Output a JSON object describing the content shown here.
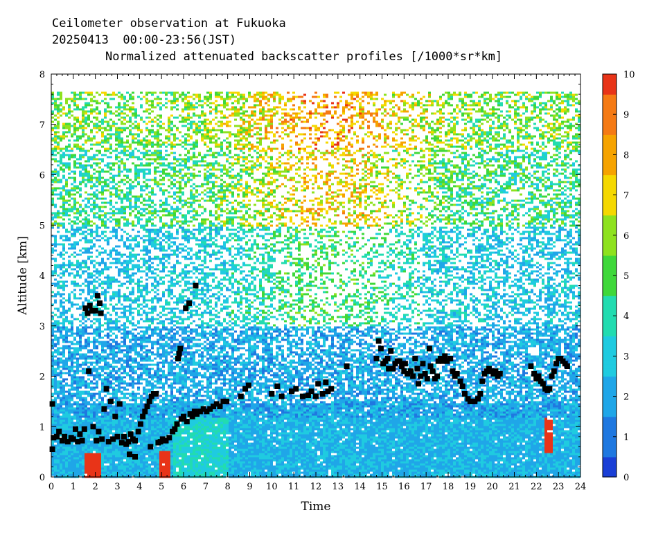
{
  "header": {
    "line1": "Ceilometer observation at Fukuoka",
    "line2": "20250413  00:00-23:56(JST)",
    "line3": "Normalized attenuated backscatter profiles [/1000*sr*km]"
  },
  "chart_data": {
    "type": "heatmap",
    "xlabel": "Time",
    "ylabel": "Altitude [km]",
    "xlim": [
      0,
      24
    ],
    "ylim": [
      0,
      8
    ],
    "xticks": [
      "0",
      "1",
      "2",
      "3",
      "4",
      "5",
      "6",
      "7",
      "8",
      "9",
      "10",
      "11",
      "12",
      "13",
      "14",
      "15",
      "16",
      "17",
      "18",
      "19",
      "20",
      "21",
      "22",
      "23",
      "24"
    ],
    "yticks": [
      "0",
      "1",
      "2",
      "3",
      "4",
      "5",
      "6",
      "7",
      "8"
    ],
    "data_top_km": 7.65,
    "colorbar": {
      "range": [
        0,
        10
      ],
      "ticks": [
        "0",
        "1",
        "2",
        "3",
        "4",
        "5",
        "6",
        "7",
        "8",
        "9",
        "10"
      ],
      "colors": [
        "#1a3fd6",
        "#1f78e0",
        "#1fa6e8",
        "#1fcbe0",
        "#22dcb0",
        "#3fd83a",
        "#8ee21e",
        "#f5d800",
        "#f6a300",
        "#f57a14",
        "#e83418"
      ]
    },
    "cloud_base_points": [
      [
        0.05,
        1.45
      ],
      [
        0.05,
        0.55
      ],
      [
        0.1,
        0.78
      ],
      [
        0.25,
        0.8
      ],
      [
        0.35,
        0.9
      ],
      [
        0.5,
        0.72
      ],
      [
        0.6,
        0.8
      ],
      [
        0.75,
        0.7
      ],
      [
        0.9,
        0.78
      ],
      [
        1.0,
        0.75
      ],
      [
        1.1,
        0.95
      ],
      [
        1.2,
        0.7
      ],
      [
        1.3,
        0.85
      ],
      [
        1.4,
        0.72
      ],
      [
        1.5,
        0.95
      ],
      [
        1.55,
        3.35
      ],
      [
        1.65,
        3.25
      ],
      [
        1.7,
        2.1
      ],
      [
        1.75,
        3.4
      ],
      [
        1.85,
        3.3
      ],
      [
        1.9,
        1.0
      ],
      [
        2.0,
        3.3
      ],
      [
        2.05,
        0.72
      ],
      [
        2.1,
        3.6
      ],
      [
        2.15,
        0.9
      ],
      [
        2.2,
        3.45
      ],
      [
        2.25,
        3.25
      ],
      [
        2.3,
        0.75
      ],
      [
        2.4,
        1.35
      ],
      [
        2.5,
        1.75
      ],
      [
        2.6,
        0.7
      ],
      [
        2.7,
        1.5
      ],
      [
        2.8,
        0.75
      ],
      [
        2.9,
        1.2
      ],
      [
        3.0,
        0.8
      ],
      [
        3.1,
        1.45
      ],
      [
        3.2,
        0.68
      ],
      [
        3.3,
        0.8
      ],
      [
        3.4,
        0.65
      ],
      [
        3.5,
        0.7
      ],
      [
        3.6,
        0.85
      ],
      [
        3.7,
        0.75
      ],
      [
        3.8,
        0.72
      ],
      [
        3.55,
        0.45
      ],
      [
        3.8,
        0.4
      ],
      [
        3.95,
        0.9
      ],
      [
        4.05,
        1.05
      ],
      [
        4.15,
        1.2
      ],
      [
        4.25,
        1.3
      ],
      [
        4.35,
        1.4
      ],
      [
        4.45,
        1.5
      ],
      [
        4.55,
        1.6
      ],
      [
        4.65,
        1.65
      ],
      [
        4.5,
        0.6
      ],
      [
        4.75,
        1.65
      ],
      [
        4.85,
        0.68
      ],
      [
        4.95,
        0.7
      ],
      [
        5.05,
        0.75
      ],
      [
        5.2,
        0.72
      ],
      [
        5.35,
        0.78
      ],
      [
        5.5,
        0.9
      ],
      [
        5.6,
        0.95
      ],
      [
        5.7,
        1.05
      ],
      [
        5.75,
        2.35
      ],
      [
        5.8,
        2.45
      ],
      [
        5.85,
        2.55
      ],
      [
        5.9,
        1.15
      ],
      [
        6.0,
        1.2
      ],
      [
        6.1,
        3.35
      ],
      [
        6.15,
        1.1
      ],
      [
        6.25,
        3.45
      ],
      [
        6.3,
        1.25
      ],
      [
        6.4,
        1.2
      ],
      [
        6.5,
        1.3
      ],
      [
        6.55,
        3.8
      ],
      [
        6.6,
        1.25
      ],
      [
        6.75,
        1.3
      ],
      [
        6.9,
        1.35
      ],
      [
        7.05,
        1.3
      ],
      [
        7.2,
        1.35
      ],
      [
        7.35,
        1.4
      ],
      [
        7.5,
        1.45
      ],
      [
        7.65,
        1.4
      ],
      [
        7.8,
        1.5
      ],
      [
        7.95,
        1.5
      ],
      [
        8.6,
        1.6
      ],
      [
        8.8,
        1.75
      ],
      [
        8.95,
        1.82
      ],
      [
        10.0,
        1.65
      ],
      [
        10.25,
        1.8
      ],
      [
        10.45,
        1.6
      ],
      [
        10.9,
        1.7
      ],
      [
        11.1,
        1.75
      ],
      [
        11.4,
        1.6
      ],
      [
        11.65,
        1.62
      ],
      [
        11.8,
        1.7
      ],
      [
        12.0,
        1.6
      ],
      [
        12.1,
        1.85
      ],
      [
        12.3,
        1.65
      ],
      [
        12.45,
        1.88
      ],
      [
        12.55,
        1.7
      ],
      [
        12.7,
        1.75
      ],
      [
        13.4,
        2.2
      ],
      [
        14.75,
        2.35
      ],
      [
        14.85,
        2.7
      ],
      [
        14.95,
        2.55
      ],
      [
        15.05,
        2.25
      ],
      [
        15.15,
        2.3
      ],
      [
        15.25,
        2.35
      ],
      [
        15.3,
        2.15
      ],
      [
        15.4,
        2.5
      ],
      [
        15.5,
        2.15
      ],
      [
        15.6,
        2.25
      ],
      [
        15.7,
        2.3
      ],
      [
        15.8,
        2.3
      ],
      [
        15.9,
        2.2
      ],
      [
        16.0,
        2.1
      ],
      [
        16.05,
        2.25
      ],
      [
        16.15,
        2.05
      ],
      [
        16.3,
        2.1
      ],
      [
        16.4,
        2.0
      ],
      [
        16.5,
        2.35
      ],
      [
        16.6,
        2.15
      ],
      [
        16.65,
        1.85
      ],
      [
        16.75,
        2.0
      ],
      [
        16.85,
        2.25
      ],
      [
        16.95,
        2.05
      ],
      [
        17.05,
        1.95
      ],
      [
        17.15,
        2.55
      ],
      [
        17.2,
        2.2
      ],
      [
        17.3,
        2.1
      ],
      [
        17.4,
        1.95
      ],
      [
        17.5,
        2.0
      ],
      [
        17.55,
        2.3
      ],
      [
        17.65,
        2.35
      ],
      [
        17.75,
        2.3
      ],
      [
        17.85,
        2.4
      ],
      [
        17.95,
        2.3
      ],
      [
        18.1,
        2.35
      ],
      [
        18.2,
        2.1
      ],
      [
        18.3,
        2.0
      ],
      [
        18.4,
        2.05
      ],
      [
        18.55,
        1.9
      ],
      [
        18.65,
        1.8
      ],
      [
        18.75,
        1.65
      ],
      [
        18.9,
        1.55
      ],
      [
        19.0,
        1.5
      ],
      [
        19.1,
        1.5
      ],
      [
        19.2,
        1.5
      ],
      [
        19.35,
        1.55
      ],
      [
        19.45,
        1.65
      ],
      [
        19.55,
        1.9
      ],
      [
        19.65,
        2.05
      ],
      [
        19.75,
        2.1
      ],
      [
        19.85,
        2.15
      ],
      [
        19.95,
        2.1
      ],
      [
        20.05,
        2.05
      ],
      [
        20.15,
        2.1
      ],
      [
        20.25,
        2.0
      ],
      [
        20.35,
        2.05
      ],
      [
        21.75,
        2.2
      ],
      [
        21.9,
        2.05
      ],
      [
        22.0,
        1.95
      ],
      [
        22.1,
        2.0
      ],
      [
        22.2,
        1.9
      ],
      [
        22.3,
        1.85
      ],
      [
        22.4,
        1.75
      ],
      [
        22.5,
        1.72
      ],
      [
        22.6,
        1.75
      ],
      [
        22.7,
        2.0
      ],
      [
        22.8,
        2.1
      ],
      [
        22.9,
        2.25
      ],
      [
        23.0,
        2.35
      ],
      [
        23.1,
        2.35
      ],
      [
        23.2,
        2.3
      ],
      [
        23.3,
        2.25
      ],
      [
        23.4,
        2.2
      ]
    ]
  }
}
